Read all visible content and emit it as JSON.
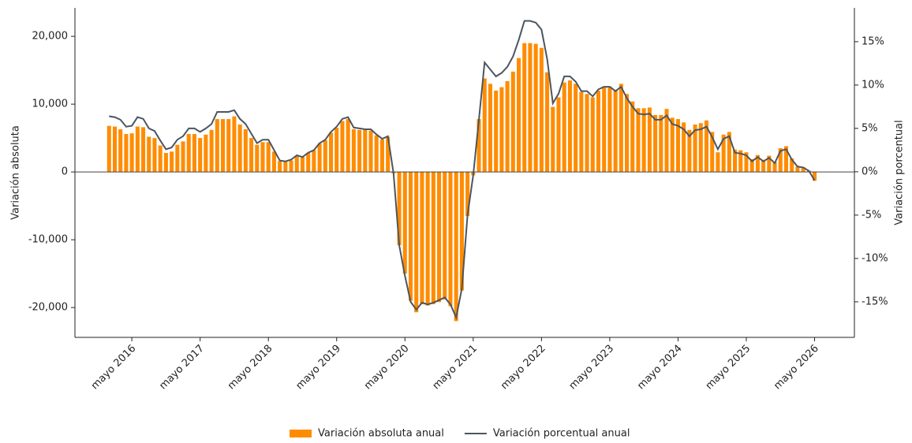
{
  "chart_data": {
    "type": "bar",
    "ylabel": "Variación absoluta",
    "y2label": "Variación porcentual",
    "x": [
      "2016-01",
      "2016-02",
      "2016-03",
      "2016-04",
      "2016-05",
      "2016-06",
      "2016-07",
      "2016-08",
      "2016-09",
      "2016-10",
      "2016-11",
      "2016-12",
      "2017-01",
      "2017-02",
      "2017-03",
      "2017-04",
      "2017-05",
      "2017-06",
      "2017-07",
      "2017-08",
      "2017-09",
      "2017-10",
      "2017-11",
      "2017-12",
      "2018-01",
      "2018-02",
      "2018-03",
      "2018-04",
      "2018-05",
      "2018-06",
      "2018-07",
      "2018-08",
      "2018-09",
      "2018-10",
      "2018-11",
      "2018-12",
      "2019-01",
      "2019-02",
      "2019-03",
      "2019-04",
      "2019-05",
      "2019-06",
      "2019-07",
      "2019-08",
      "2019-09",
      "2019-10",
      "2019-11",
      "2019-12",
      "2020-01",
      "2020-02",
      "2020-03",
      "2020-04",
      "2020-05",
      "2020-06",
      "2020-07",
      "2020-08",
      "2020-09",
      "2020-10",
      "2020-11",
      "2020-12",
      "2021-01",
      "2021-02",
      "2021-03",
      "2021-04",
      "2021-05",
      "2021-06",
      "2021-07",
      "2021-08",
      "2021-09",
      "2021-10",
      "2021-11",
      "2021-12",
      "2022-01",
      "2022-02",
      "2022-03",
      "2022-04",
      "2022-05",
      "2022-06",
      "2022-07",
      "2022-08",
      "2022-09",
      "2022-10",
      "2022-11",
      "2022-12",
      "2023-01",
      "2023-02",
      "2023-03",
      "2023-04",
      "2023-05",
      "2023-06",
      "2023-07",
      "2023-08",
      "2023-09",
      "2023-10",
      "2023-11",
      "2023-12",
      "2024-01",
      "2024-02",
      "2024-03",
      "2024-04",
      "2024-05",
      "2024-06",
      "2024-07",
      "2024-08",
      "2024-09",
      "2024-10",
      "2024-11",
      "2024-12",
      "2025-01",
      "2025-02",
      "2025-03",
      "2025-04",
      "2025-05",
      "2025-06",
      "2025-07",
      "2025-08",
      "2025-09",
      "2025-10",
      "2025-11",
      "2025-12",
      "2026-01",
      "2026-02",
      "2026-03",
      "2026-04",
      "2026-05"
    ],
    "series": [
      {
        "name": "Variación absoluta anual",
        "color": "#ff8c00",
        "values": [
          6800,
          6700,
          6300,
          5600,
          5700,
          6700,
          6600,
          5200,
          5000,
          3900,
          2800,
          3000,
          4000,
          4500,
          5600,
          5600,
          5000,
          5500,
          6200,
          7800,
          7800,
          7800,
          8200,
          7000,
          6300,
          5000,
          4000,
          4400,
          4400,
          3000,
          1600,
          1500,
          1700,
          2400,
          2200,
          2800,
          3200,
          4200,
          4700,
          5800,
          6500,
          7500,
          7800,
          6300,
          6200,
          6200,
          6100,
          5400,
          4800,
          5200,
          -200,
          -10800,
          -15000,
          -19000,
          -20700,
          -19500,
          -19700,
          -19500,
          -19200,
          -18800,
          -19800,
          -22000,
          -17500,
          -6500,
          -500,
          7800,
          13800,
          13000,
          12000,
          12500,
          13400,
          14800,
          16800,
          19000,
          19000,
          18900,
          18300,
          14700,
          9600,
          11000,
          13200,
          13500,
          13000,
          11800,
          11500,
          11000,
          12000,
          12600,
          12600,
          12000,
          13000,
          11500,
          10400,
          9400,
          9400,
          9500,
          8400,
          8400,
          9300,
          8000,
          7800,
          7300,
          6200,
          7000,
          7200,
          7600,
          5900,
          2900,
          5500,
          5900,
          3300,
          3200,
          2900,
          1900,
          2500,
          1800,
          2400,
          1500,
          3500,
          3800,
          2000,
          800,
          700,
          200,
          -1300
        ]
      },
      {
        "name": "Variación porcentual anual",
        "color": "#4b5560",
        "type": "line",
        "axis": "y2",
        "values": [
          6.4,
          6.3,
          6.0,
          5.2,
          5.3,
          6.3,
          6.1,
          5.0,
          4.7,
          3.6,
          2.6,
          2.8,
          3.7,
          4.1,
          5.0,
          5.0,
          4.6,
          5.0,
          5.5,
          6.9,
          6.9,
          6.9,
          7.1,
          6.1,
          5.5,
          4.4,
          3.3,
          3.7,
          3.7,
          2.5,
          1.3,
          1.2,
          1.4,
          1.9,
          1.7,
          2.2,
          2.5,
          3.3,
          3.7,
          4.6,
          5.2,
          6.1,
          6.3,
          5.1,
          5.0,
          4.9,
          4.9,
          4.3,
          3.8,
          4.1,
          -0.2,
          -8.5,
          -12.0,
          -15.0,
          -15.9,
          -15.1,
          -15.3,
          -15.1,
          -14.8,
          -14.5,
          -15.3,
          -16.8,
          -13.5,
          -5.0,
          -0.4,
          6.0,
          12.6,
          11.8,
          11.0,
          11.4,
          12.1,
          13.3,
          15.2,
          17.4,
          17.4,
          17.2,
          16.4,
          13.0,
          7.9,
          9.0,
          11.0,
          11.0,
          10.4,
          9.3,
          9.3,
          8.7,
          9.5,
          9.8,
          9.8,
          9.3,
          9.8,
          8.5,
          7.5,
          6.7,
          6.6,
          6.7,
          6.0,
          6.0,
          6.5,
          5.5,
          5.3,
          4.9,
          4.1,
          4.8,
          4.9,
          5.2,
          4.0,
          2.6,
          3.8,
          4.1,
          2.2,
          2.1,
          1.9,
          1.2,
          1.7,
          1.2,
          1.6,
          1.0,
          2.4,
          2.6,
          1.4,
          0.6,
          0.5,
          0.1,
          -1.0
        ]
      }
    ],
    "xlim": [
      "2015-07",
      "2026-12"
    ],
    "xticks": [
      {
        "value": "2016-05",
        "label": "mayo 2016"
      },
      {
        "value": "2017-05",
        "label": "mayo 2017"
      },
      {
        "value": "2018-05",
        "label": "mayo 2018"
      },
      {
        "value": "2019-05",
        "label": "mayo 2019"
      },
      {
        "value": "2020-05",
        "label": "mayo 2020"
      },
      {
        "value": "2021-05",
        "label": "mayo 2021"
      },
      {
        "value": "2022-05",
        "label": "mayo 2022"
      },
      {
        "value": "2023-05",
        "label": "mayo 2023"
      },
      {
        "value": "2024-05",
        "label": "mayo 2024"
      },
      {
        "value": "2025-05",
        "label": "mayo 2025"
      },
      {
        "value": "2026-05",
        "label": "mayo 2026"
      }
    ],
    "ylim": [
      -24400,
      24200
    ],
    "yticks": [
      {
        "value": -20000,
        "label": "-20,000"
      },
      {
        "value": -10000,
        "label": "-10,000"
      },
      0,
      {
        "value": 10000,
        "label": "10,000"
      },
      {
        "value": 20000,
        "label": "20,000"
      }
    ],
    "y2lim": [
      -19.1,
      18.9
    ],
    "y2ticks": [
      {
        "value": -15,
        "label": "-15%"
      },
      {
        "value": -10,
        "label": "-10%"
      },
      {
        "value": -5,
        "label": "-5%"
      },
      {
        "value": 0,
        "label": "0%"
      },
      {
        "value": 5,
        "label": "5%"
      },
      {
        "value": 10,
        "label": "10%"
      },
      {
        "value": 15,
        "label": "15%"
      }
    ],
    "zero_line": true,
    "legend": "bottom"
  }
}
